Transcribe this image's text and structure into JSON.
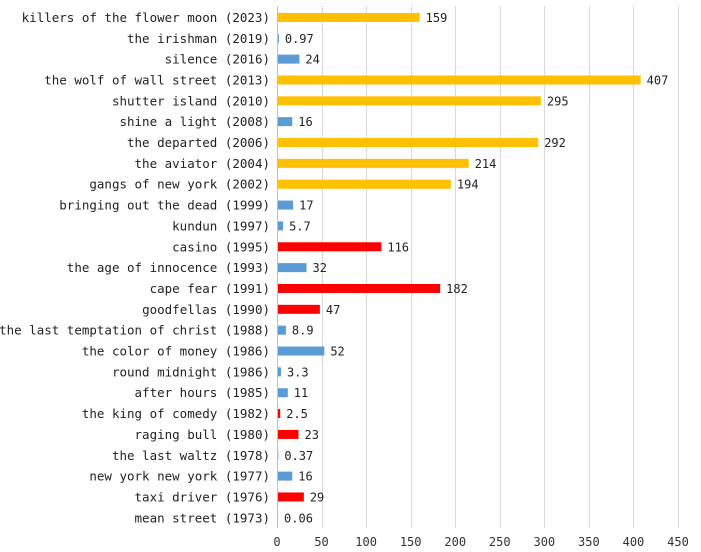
{
  "chart_data": {
    "type": "bar",
    "orientation": "horizontal",
    "title": "",
    "xlabel": "",
    "ylabel": "",
    "xlim": [
      0,
      450
    ],
    "xticks": [
      0,
      50,
      100,
      150,
      200,
      250,
      300,
      350,
      400,
      450
    ],
    "grid": true,
    "legend": "none",
    "colors": {
      "gold": "#FFC000",
      "blue": "#5B9BD5",
      "red": "#FF0000"
    },
    "categories": [
      "killers of the flower moon (2023)",
      "the irishman (2019)",
      "silence (2016)",
      "the wolf of wall street (2013)",
      "shutter island (2010)",
      "shine a light (2008)",
      "the departed (2006)",
      "the aviator (2004)",
      "gangs of new york (2002)",
      "bringing out the dead (1999)",
      "kundun (1997)",
      "casino (1995)",
      "the age of innocence (1993)",
      "cape fear (1991)",
      "goodfellas (1990)",
      "the last temptation of christ (1988)",
      "the color of money (1986)",
      "round midnight (1986)",
      "after hours (1985)",
      "the king of comedy (1982)",
      "raging bull (1980)",
      "the last waltz (1978)",
      "new york new york (1977)",
      "taxi driver (1976)",
      "mean street (1973)"
    ],
    "values": [
      159,
      0.97,
      24,
      407,
      295,
      16,
      292,
      214,
      194,
      17,
      5.7,
      116,
      32,
      182,
      47,
      8.9,
      52,
      3.3,
      11,
      2.5,
      23,
      0.37,
      16,
      29,
      0.06
    ],
    "value_labels": [
      "159",
      "0.97",
      "24",
      "407",
      "295",
      "16",
      "292",
      "214",
      "194",
      "17",
      "5.7",
      "116",
      "32",
      "182",
      "47",
      "8.9",
      "52",
      "3.3",
      "11",
      "2.5",
      "23",
      "0.37",
      "16",
      "29",
      "0.06"
    ],
    "bar_colors": [
      "gold",
      "blue",
      "blue",
      "gold",
      "gold",
      "blue",
      "gold",
      "gold",
      "gold",
      "blue",
      "blue",
      "red",
      "blue",
      "red",
      "red",
      "blue",
      "blue",
      "blue",
      "blue",
      "red",
      "red",
      "blue",
      "blue",
      "red",
      "blue"
    ]
  }
}
